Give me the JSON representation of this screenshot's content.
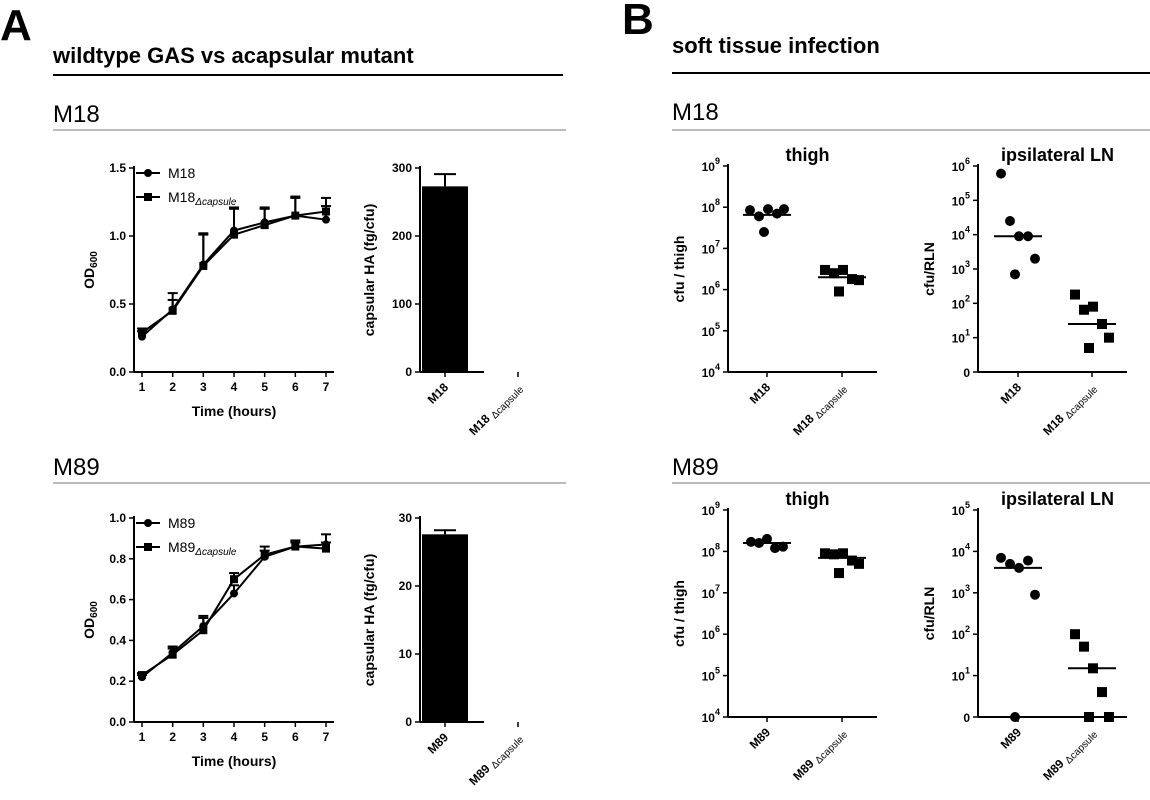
{
  "figure": {
    "panel_labels": [
      "A",
      "B"
    ],
    "section_titles": [
      "wildtype GAS vs acapsular mutant",
      "soft tissue infection"
    ],
    "strains": [
      "M18",
      "M89"
    ]
  },
  "chart_data": [
    {
      "id": "growth-m18",
      "type": "line",
      "xlabel": "Time (hours)",
      "ylabel": "OD",
      "ylabel_sub": "600",
      "x": [
        1,
        2,
        3,
        4,
        5,
        6,
        7
      ],
      "xlim": [
        1,
        7
      ],
      "ylim": [
        0,
        1.5
      ],
      "yticks": [
        "0.0",
        "0.5",
        "1.0",
        "1.5"
      ],
      "series": [
        {
          "name": "M18",
          "name_sub": "",
          "marker": "circle",
          "values": [
            0.26,
            0.46,
            0.79,
            1.04,
            1.1,
            1.15,
            1.12
          ],
          "errors": [
            0.04,
            0.12,
            0.22,
            0.16,
            0.1,
            0.14,
            0.1
          ]
        },
        {
          "name": "M18",
          "name_sub": "Δcapsule",
          "marker": "square",
          "values": [
            0.29,
            0.45,
            0.78,
            1.01,
            1.08,
            1.15,
            1.18
          ],
          "errors": [
            0.03,
            0.08,
            0.24,
            0.2,
            0.13,
            0.13,
            0.1
          ]
        }
      ],
      "legend": "top-left"
    },
    {
      "id": "ha-m18",
      "type": "bar",
      "ylabel": "capsular HA (fg/cfu)",
      "ylim": [
        0,
        300
      ],
      "yticks": [
        "0",
        "100",
        "200",
        "300"
      ],
      "categories": [
        {
          "main": "M18",
          "sub": ""
        },
        {
          "main": "M18 ",
          "sub": "Δcapsule"
        }
      ],
      "values": [
        273,
        0
      ],
      "errors": [
        18,
        0
      ]
    },
    {
      "id": "growth-m89",
      "type": "line",
      "xlabel": "Time (hours)",
      "ylabel": "OD",
      "ylabel_sub": "600",
      "x": [
        1,
        2,
        3,
        4,
        5,
        6,
        7
      ],
      "xlim": [
        1,
        7
      ],
      "ylim": [
        0,
        1.0
      ],
      "yticks": [
        "0.0",
        "0.2",
        "0.4",
        "0.6",
        "0.8",
        "1.0"
      ],
      "series": [
        {
          "name": "M89",
          "name_sub": "",
          "marker": "circle",
          "values": [
            0.22,
            0.34,
            0.47,
            0.63,
            0.81,
            0.86,
            0.87
          ],
          "errors": [
            0.01,
            0.03,
            0.04,
            0.04,
            0.03,
            0.03,
            0.05
          ]
        },
        {
          "name": "M89",
          "name_sub": "Δcapsule",
          "marker": "square",
          "values": [
            0.23,
            0.33,
            0.45,
            0.7,
            0.82,
            0.86,
            0.85
          ],
          "errors": [
            0.01,
            0.03,
            0.07,
            0.03,
            0.04,
            0.02,
            0.03
          ]
        }
      ],
      "legend": "top-left"
    },
    {
      "id": "ha-m89",
      "type": "bar",
      "ylabel": "capsular HA (fg/cfu)",
      "ylim": [
        0,
        30
      ],
      "yticks": [
        "0",
        "10",
        "20",
        "30"
      ],
      "categories": [
        {
          "main": "M89",
          "sub": ""
        },
        {
          "main": "M89 ",
          "sub": "Δcapsule"
        }
      ],
      "values": [
        27.6,
        0
      ],
      "errors": [
        0.6,
        0
      ]
    },
    {
      "id": "thigh-m18",
      "type": "scatter",
      "title": "thigh",
      "ylabel": "cfu / thigh",
      "yscale": "log",
      "ylim_exp": [
        4,
        9
      ],
      "yticks": [
        {
          "base": "10",
          "exp": "4"
        },
        {
          "base": "10",
          "exp": "5"
        },
        {
          "base": "10",
          "exp": "6"
        },
        {
          "base": "10",
          "exp": "7"
        },
        {
          "base": "10",
          "exp": "8"
        },
        {
          "base": "10",
          "exp": "9"
        }
      ],
      "categories": [
        {
          "main": "M18",
          "sub": ""
        },
        {
          "main": "M18 ",
          "sub": "Δcapsule"
        }
      ],
      "groups": [
        {
          "marker": "circle",
          "values": [
            85000000,
            60000000,
            90000000,
            70000000,
            90000000,
            25000000
          ],
          "median": 65000000
        },
        {
          "marker": "square",
          "values": [
            3000000,
            2500000,
            3000000,
            1800000,
            1700000,
            900000
          ],
          "median": 2000000
        }
      ]
    },
    {
      "id": "rln-m18",
      "type": "scatter",
      "title": "ipsilateral LN",
      "ylabel": "cfu/RLN",
      "yscale": "log",
      "has_zero": true,
      "yticks": [
        {
          "base": "0",
          "exp": ""
        },
        {
          "base": "10",
          "exp": "1"
        },
        {
          "base": "10",
          "exp": "2"
        },
        {
          "base": "10",
          "exp": "3"
        },
        {
          "base": "10",
          "exp": "4"
        },
        {
          "base": "10",
          "exp": "5"
        },
        {
          "base": "10",
          "exp": "6"
        }
      ],
      "categories": [
        {
          "main": "M18",
          "sub": ""
        },
        {
          "main": "M18 ",
          "sub": "Δcapsule"
        }
      ],
      "groups": [
        {
          "marker": "circle",
          "values": [
            600000,
            25000,
            9000,
            9000,
            2000,
            700
          ],
          "median": 9000
        },
        {
          "marker": "square",
          "values": [
            180,
            65,
            80,
            25,
            10,
            5
          ],
          "median": 25
        }
      ]
    },
    {
      "id": "thigh-m89",
      "type": "scatter",
      "title": "thigh",
      "ylabel": "cfu / thigh",
      "yscale": "log",
      "ylim_exp": [
        4,
        9
      ],
      "yticks": [
        {
          "base": "10",
          "exp": "4"
        },
        {
          "base": "10",
          "exp": "5"
        },
        {
          "base": "10",
          "exp": "6"
        },
        {
          "base": "10",
          "exp": "7"
        },
        {
          "base": "10",
          "exp": "8"
        },
        {
          "base": "10",
          "exp": "9"
        }
      ],
      "categories": [
        {
          "main": "M89",
          "sub": ""
        },
        {
          "main": "M89 ",
          "sub": "Δcapsule"
        }
      ],
      "groups": [
        {
          "marker": "circle",
          "values": [
            170000000,
            160000000,
            200000000,
            120000000,
            130000000
          ],
          "median": 160000000
        },
        {
          "marker": "square",
          "values": [
            90000000,
            85000000,
            90000000,
            60000000,
            50000000,
            30000000
          ],
          "median": 70000000
        }
      ]
    },
    {
      "id": "rln-m89",
      "type": "scatter",
      "title": "ipsilateral LN",
      "ylabel": "cfu/RLN",
      "yscale": "log",
      "has_zero": true,
      "yticks": [
        {
          "base": "0",
          "exp": ""
        },
        {
          "base": "10",
          "exp": "1"
        },
        {
          "base": "10",
          "exp": "2"
        },
        {
          "base": "10",
          "exp": "3"
        },
        {
          "base": "10",
          "exp": "4"
        },
        {
          "base": "10",
          "exp": "5"
        }
      ],
      "categories": [
        {
          "main": "M89",
          "sub": ""
        },
        {
          "main": "M89 ",
          "sub": "Δcapsule"
        }
      ],
      "groups": [
        {
          "marker": "circle",
          "values": [
            7000,
            5000,
            4000,
            6000,
            900,
            0
          ],
          "median": 4000
        },
        {
          "marker": "square",
          "values": [
            100,
            50,
            15,
            4,
            0,
            0
          ],
          "median": 15
        }
      ]
    }
  ]
}
